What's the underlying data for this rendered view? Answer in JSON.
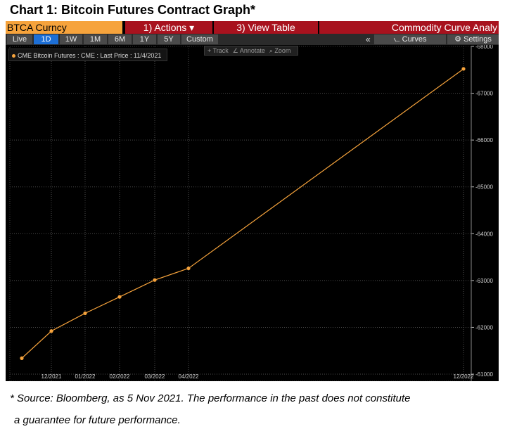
{
  "page_title": "Chart 1: Bitcoin Futures Contract Graph*",
  "terminal": {
    "ticker": "BTCA Curncy",
    "actions_label": "1) Actions ▾",
    "view_table_label": "3) View Table",
    "commodity_label": "Commodity Curve Analy",
    "ranges": [
      "Live",
      "1D",
      "1W",
      "1M",
      "6M",
      "1Y",
      "5Y",
      "Custom"
    ],
    "active_range": "1D",
    "collapse_label": "«",
    "curves_label": "Curves",
    "settings_label": "⚙ Settings",
    "tools": [
      "+ Track",
      "∠ Annotate",
      "⌕ Zoom"
    ],
    "legend_label": "CME Bitcoin Futures : CME : Last Price : 11/4/2021",
    "colors": {
      "ticker_bg": "#f6a33c",
      "button_red": "#a8121e",
      "active_blue": "#1d6fd6",
      "series": "#f6a33c",
      "background": "#000000"
    }
  },
  "chart_data": {
    "type": "line",
    "series": [
      {
        "name": "CME Bitcoin Futures : CME : Last Price : 11/4/2021",
        "x": [
          "11/2021",
          "12/2021",
          "01/2022",
          "02/2022",
          "03/2022",
          "04/2022",
          "12/2022"
        ],
        "y": [
          61340,
          61920,
          62300,
          62650,
          63010,
          63260,
          67520
        ]
      }
    ],
    "x_tick_labels": [
      "12/2021",
      "01/2022",
      "02/2022",
      "03/2022",
      "04/2022",
      "12/2022"
    ],
    "y_ticks": [
      61000,
      62000,
      63000,
      64000,
      65000,
      66000,
      67000,
      68000
    ],
    "ylim": [
      60850,
      68000
    ],
    "grid": true,
    "legend_position": "top-left"
  },
  "footnote_line1": "* Source: Bloomberg, as 5 Nov 2021. The performance in the past does not constitute",
  "footnote_line2": "a guarantee for future performance."
}
